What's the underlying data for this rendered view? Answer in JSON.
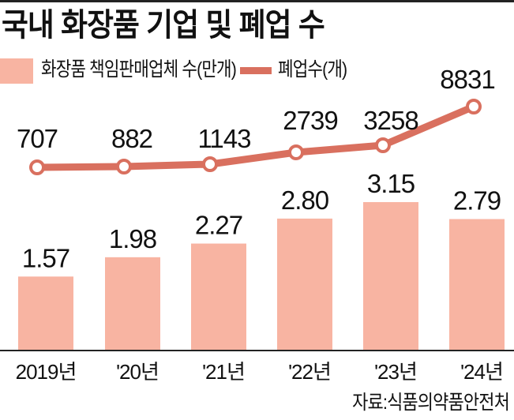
{
  "title": "국내 화장품 기업 및 폐업 수",
  "legend": {
    "bar_label": "화장품 책임판매업체 수(만개)",
    "line_label": "폐업수(개)"
  },
  "colors": {
    "bar": "#f8b4a2",
    "line": "#d9705f",
    "axis": "#222222",
    "text": "#111111"
  },
  "source": "자료:식품의약품안전처",
  "chart_data": {
    "type": "bar+line",
    "title": "국내 화장품 기업 및 폐업 수",
    "categories": [
      "2019년",
      "'20년",
      "'21년",
      "'22년",
      "'23년",
      "'24년"
    ],
    "series": [
      {
        "name": "화장품 책임판매업체 수(만개)",
        "type": "bar",
        "values": [
          1.57,
          1.98,
          2.27,
          2.8,
          3.15,
          2.79
        ],
        "labels": [
          "1.57",
          "1.98",
          "2.27",
          "2.80",
          "3.15",
          "2.79"
        ]
      },
      {
        "name": "폐업수(개)",
        "type": "line",
        "values": [
          707,
          882,
          1143,
          2739,
          3258,
          8831
        ],
        "labels": [
          "707",
          "882",
          "1143",
          "2739",
          "3258",
          "8831"
        ]
      }
    ],
    "xlabel": "",
    "ylabel": "",
    "grid": false,
    "legend_position": "top",
    "source": "자료:식품의약품안전처"
  }
}
